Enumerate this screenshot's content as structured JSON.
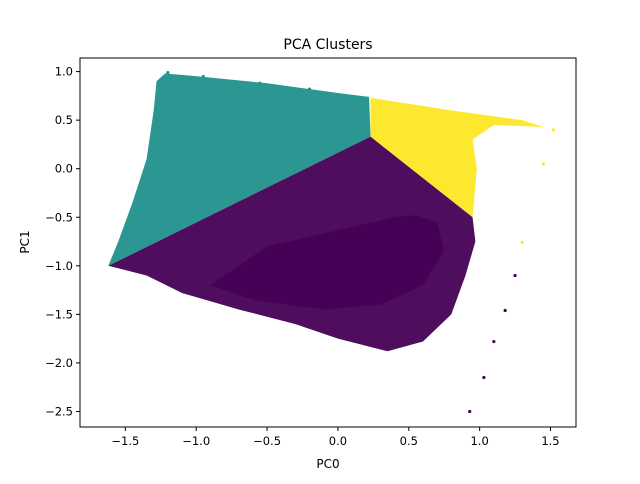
{
  "chart_data": {
    "type": "scatter",
    "title": "PCA Clusters",
    "xlabel": "PC0",
    "ylabel": "PC1",
    "xlim": [
      -1.82,
      1.68
    ],
    "ylim": [
      -2.66,
      1.14
    ],
    "xticks": [
      -1.5,
      -1.0,
      -0.5,
      0.0,
      0.5,
      1.0,
      1.5
    ],
    "yticks": [
      -2.5,
      -2.0,
      -1.5,
      -1.0,
      -0.5,
      0.0,
      0.5,
      1.0
    ],
    "xtick_labels": [
      "−1.5",
      "−1.0",
      "−0.5",
      "0.0",
      "0.5",
      "1.0",
      "1.5"
    ],
    "ytick_labels": [
      "−2.5",
      "−2.0",
      "−1.5",
      "−1.0",
      "−0.5",
      "0.0",
      "0.5",
      "1.0"
    ],
    "grid": false,
    "legend": false,
    "series": [
      {
        "color": "#21918c",
        "regions": [
          [
            [
              -1.62,
              -1.0
            ],
            [
              -1.55,
              -0.75
            ],
            [
              -1.45,
              -0.35
            ],
            [
              -1.35,
              0.1
            ],
            [
              -1.3,
              0.6
            ],
            [
              -1.28,
              0.9
            ],
            [
              -1.22,
              0.98
            ],
            [
              -1.05,
              0.96
            ],
            [
              -0.5,
              0.88
            ],
            [
              0.0,
              0.78
            ],
            [
              0.22,
              0.74
            ],
            [
              0.23,
              0.33
            ]
          ]
        ],
        "points": [
          [
            -0.95,
            0.95
          ],
          [
            -0.55,
            0.88
          ],
          [
            -0.2,
            0.82
          ],
          [
            0.0,
            0.75
          ],
          [
            -1.2,
            0.99
          ]
        ]
      },
      {
        "color": "#fde725",
        "regions": [
          [
            [
              0.23,
              0.33
            ],
            [
              0.23,
              0.73
            ],
            [
              0.8,
              0.6
            ],
            [
              1.3,
              0.5
            ],
            [
              1.45,
              0.43
            ],
            [
              1.1,
              0.45
            ],
            [
              0.95,
              0.3
            ],
            [
              0.98,
              0.0
            ],
            [
              0.95,
              -0.5
            ]
          ]
        ],
        "points": [
          [
            1.52,
            0.4
          ],
          [
            1.45,
            0.05
          ],
          [
            1.3,
            -0.76
          ]
        ]
      },
      {
        "color": "#440154",
        "regions": [
          [
            [
              -1.62,
              -1.0
            ],
            [
              0.23,
              0.33
            ],
            [
              0.95,
              -0.5
            ],
            [
              0.97,
              -0.75
            ],
            [
              0.9,
              -1.1
            ],
            [
              0.8,
              -1.5
            ],
            [
              0.6,
              -1.78
            ],
            [
              0.35,
              -1.88
            ],
            [
              0.0,
              -1.75
            ],
            [
              -0.3,
              -1.6
            ],
            [
              -0.7,
              -1.45
            ],
            [
              -1.1,
              -1.28
            ],
            [
              -1.35,
              -1.1
            ]
          ],
          [
            [
              -0.5,
              -0.8
            ],
            [
              0.4,
              -0.5
            ],
            [
              0.55,
              -0.48
            ],
            [
              0.7,
              -0.55
            ],
            [
              0.75,
              -0.85
            ],
            [
              0.6,
              -1.2
            ],
            [
              0.3,
              -1.4
            ],
            [
              -0.1,
              -1.45
            ],
            [
              -0.6,
              -1.35
            ],
            [
              -0.9,
              -1.2
            ]
          ]
        ],
        "points": [
          [
            0.93,
            -2.5
          ],
          [
            1.03,
            -2.15
          ],
          [
            1.1,
            -1.78
          ],
          [
            1.18,
            -1.46
          ],
          [
            1.25,
            -1.1
          ]
        ]
      }
    ]
  }
}
